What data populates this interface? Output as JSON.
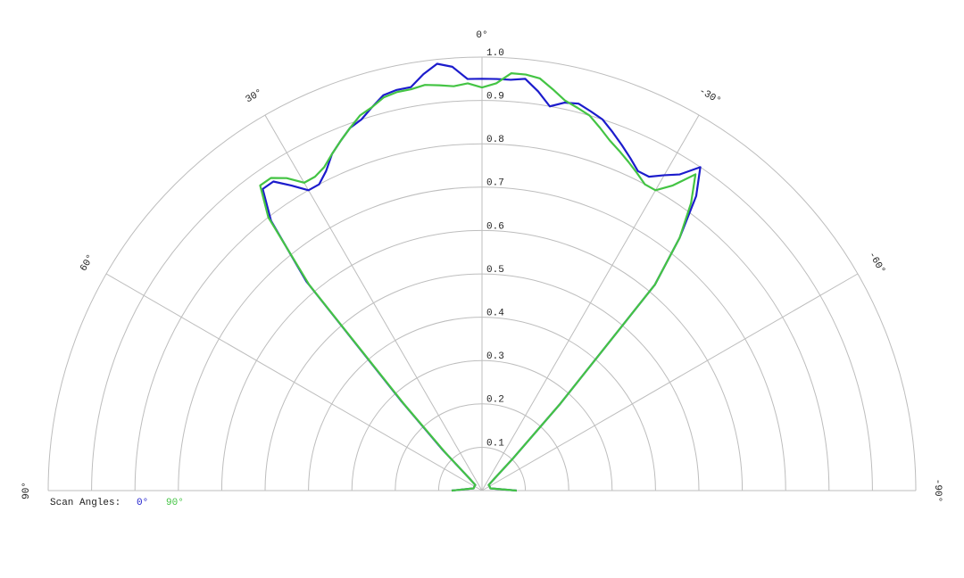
{
  "chart_data": {
    "type": "polar",
    "theta": [
      90,
      75,
      60,
      50,
      46,
      44,
      42,
      40,
      38,
      36,
      34,
      32,
      30,
      28,
      26,
      24,
      22,
      20,
      18,
      16,
      14,
      12,
      10,
      8,
      6,
      4,
      2,
      0,
      -2,
      -4,
      -6,
      -8,
      -10,
      -12,
      -14,
      -16,
      -18,
      -20,
      -22,
      -24,
      -26,
      -28,
      -30,
      -32,
      -34,
      -36,
      -38,
      -40,
      -42,
      -44,
      -46,
      -50,
      -60,
      -75,
      -90
    ],
    "series": [
      {
        "name": "0°",
        "color": "#1c1ccc",
        "values": [
          0.07,
          0.02,
          0.02,
          0.02,
          0.04,
          0.13,
          0.28,
          0.63,
          0.79,
          0.86,
          0.86,
          0.83,
          0.8,
          0.8,
          0.82,
          0.85,
          0.87,
          0.89,
          0.9,
          0.92,
          0.94,
          0.945,
          0.945,
          0.97,
          0.99,
          0.98,
          0.95,
          0.95,
          0.95,
          0.95,
          0.955,
          0.93,
          0.9,
          0.915,
          0.92,
          0.91,
          0.9,
          0.88,
          0.86,
          0.84,
          0.82,
          0.82,
          0.84,
          0.86,
          0.9,
          0.84,
          0.74,
          0.62,
          0.27,
          0.1,
          0.04,
          0.02,
          0.02,
          0.02,
          0.08
        ]
      },
      {
        "name": "90°",
        "color": "#44c444",
        "values": [
          0.07,
          0.02,
          0.02,
          0.02,
          0.04,
          0.12,
          0.27,
          0.62,
          0.8,
          0.87,
          0.87,
          0.85,
          0.82,
          0.82,
          0.83,
          0.85,
          0.87,
          0.89,
          0.91,
          0.92,
          0.935,
          0.94,
          0.94,
          0.945,
          0.94,
          0.935,
          0.94,
          0.93,
          0.94,
          0.965,
          0.965,
          0.96,
          0.94,
          0.92,
          0.91,
          0.9,
          0.88,
          0.86,
          0.845,
          0.83,
          0.815,
          0.8,
          0.8,
          0.83,
          0.88,
          0.82,
          0.74,
          0.62,
          0.27,
          0.1,
          0.04,
          0.02,
          0.02,
          0.02,
          0.08
        ]
      }
    ],
    "rlim": [
      0,
      1
    ],
    "rticks": [
      0.1,
      0.2,
      0.3,
      0.4,
      0.5,
      0.6,
      0.7,
      0.8,
      0.9,
      {
        "value": 1,
        "label": "1.0"
      }
    ],
    "thetalim": [
      -90,
      90
    ],
    "thetaticks": [
      {
        "value": 90,
        "label": "90°"
      },
      {
        "value": 60,
        "label": "60°"
      },
      {
        "value": 30,
        "label": "30°"
      },
      {
        "value": 0,
        "label": "0°"
      },
      {
        "value": -30,
        "label": "-30°"
      },
      {
        "value": -60,
        "label": "-60°"
      },
      {
        "value": -90,
        "label": "-90°"
      }
    ],
    "legend_title": "Scan Angles:",
    "grid": true
  }
}
